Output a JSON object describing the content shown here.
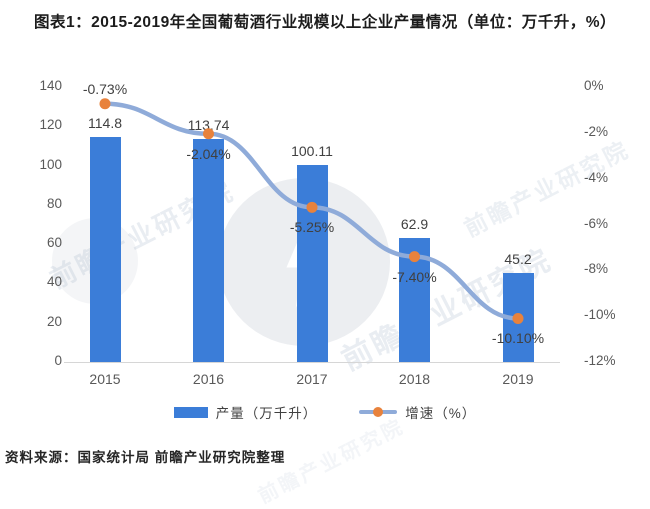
{
  "title": "图表1：2015-2019年全国葡萄酒行业规模以上企业产量情况（单位：万千升，%）",
  "source": "资料来源：国家统计局  前瞻产业研究院整理",
  "watermark": {
    "text": "前瞻产业研究院"
  },
  "legend": [
    {
      "label": "产量（万千升）"
    },
    {
      "label": "增速（%）"
    }
  ],
  "colors": {
    "bar": "#3B7DD8",
    "line": "#8FABD9",
    "marker": "#E8823C",
    "axis_text": "#595959",
    "data_label": "#404040"
  },
  "chart_data": {
    "type": "bar",
    "combo": "bar+line",
    "title": "图表1：2015-2019年全国葡萄酒行业规模以上企业产量情况（单位：万千升，%）",
    "categories": [
      "2015",
      "2016",
      "2017",
      "2018",
      "2019"
    ],
    "series": [
      {
        "name": "产量（万千升）",
        "type": "bar",
        "axis": "left",
        "values": [
          114.8,
          113.74,
          100.11,
          62.9,
          45.2
        ],
        "labels": [
          "114.8",
          "113.74",
          "100.11",
          "62.9",
          "45.2"
        ]
      },
      {
        "name": "增速（%）",
        "type": "line",
        "axis": "right",
        "values": [
          -0.73,
          -2.04,
          -5.25,
          -7.4,
          -10.1
        ],
        "labels": [
          "-0.73%",
          "-2.04%",
          "-5.25%",
          "-7.40%",
          "-10.10%"
        ]
      }
    ],
    "left_axis": {
      "ticks": [
        140,
        120,
        100,
        80,
        60,
        40,
        20,
        0
      ],
      "min": 0,
      "max": 140
    },
    "right_axis": {
      "ticks": [
        "0%",
        "-2%",
        "-4%",
        "-6%",
        "-8%",
        "-10%",
        "-12%"
      ],
      "tick_values": [
        0,
        -2,
        -4,
        -6,
        -8,
        -10,
        -12
      ],
      "min": -12,
      "max": 0
    },
    "grid": false,
    "legend_position": "bottom"
  }
}
